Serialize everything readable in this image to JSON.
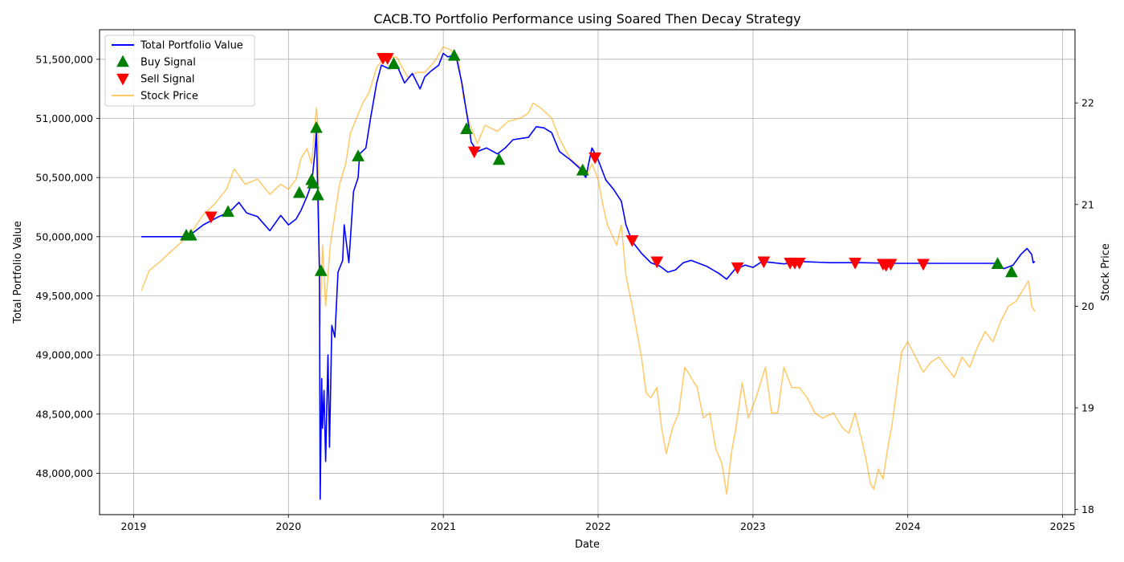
{
  "chart_data": {
    "type": "line",
    "title": "CACB.TO Portfolio Performance using Soared Then Decay Strategy",
    "xlabel": "Date",
    "ylabel": "Total Portfolio Value",
    "ylabel_right": "Stock Price",
    "xlim": [
      2018.78,
      2025.08
    ],
    "ylim": [
      47650000,
      51750000
    ],
    "ylim_right": [
      17.95,
      22.72
    ],
    "x_ticks": [
      2019,
      2020,
      2021,
      2022,
      2023,
      2024,
      2025
    ],
    "x_tick_labels": [
      "2019",
      "2020",
      "2021",
      "2022",
      "2023",
      "2024",
      "2025"
    ],
    "y_ticks": [
      48000000,
      48500000,
      49000000,
      49500000,
      50000000,
      50500000,
      51000000,
      51500000
    ],
    "y_tick_labels": [
      "48,000,000",
      "48,500,000",
      "49,000,000",
      "49,500,000",
      "50,000,000",
      "50,500,000",
      "51,000,000",
      "51,500,000"
    ],
    "y_ticks_right": [
      18,
      19,
      20,
      21,
      22
    ],
    "y_tick_labels_right": [
      "18",
      "19",
      "20",
      "21",
      "22"
    ],
    "grid": true,
    "legend_position": "top-left",
    "legend": [
      {
        "label": "Total Portfolio Value",
        "kind": "line",
        "color": "#0000ff"
      },
      {
        "label": "Buy Signal",
        "kind": "triangle-up",
        "color": "#008000"
      },
      {
        "label": "Sell Signal",
        "kind": "triangle-down",
        "color": "#ff0000"
      },
      {
        "label": "Stock Price",
        "kind": "line",
        "color": "#ffa500"
      }
    ],
    "series": [
      {
        "name": "Total Portfolio Value",
        "axis": "left",
        "color": "#0000ff",
        "points": [
          [
            2019.05,
            50000000
          ],
          [
            2019.33,
            50000000
          ],
          [
            2019.37,
            50020000
          ],
          [
            2019.45,
            50100000
          ],
          [
            2019.55,
            50170000
          ],
          [
            2019.62,
            50210000
          ],
          [
            2019.68,
            50290000
          ],
          [
            2019.73,
            50200000
          ],
          [
            2019.8,
            50170000
          ],
          [
            2019.88,
            50050000
          ],
          [
            2019.95,
            50180000
          ],
          [
            2020.0,
            50100000
          ],
          [
            2020.05,
            50150000
          ],
          [
            2020.08,
            50220000
          ],
          [
            2020.12,
            50340000
          ],
          [
            2020.15,
            50450000
          ],
          [
            2020.17,
            50700000
          ],
          [
            2020.18,
            50900000
          ],
          [
            2020.19,
            50350000
          ],
          [
            2020.2,
            49700000
          ],
          [
            2020.205,
            47780000
          ],
          [
            2020.215,
            48800000
          ],
          [
            2020.22,
            48380000
          ],
          [
            2020.23,
            48700000
          ],
          [
            2020.24,
            48100000
          ],
          [
            2020.255,
            49000000
          ],
          [
            2020.265,
            48220000
          ],
          [
            2020.28,
            49250000
          ],
          [
            2020.3,
            49150000
          ],
          [
            2020.32,
            49700000
          ],
          [
            2020.35,
            49800000
          ],
          [
            2020.36,
            50100000
          ],
          [
            2020.39,
            49780000
          ],
          [
            2020.42,
            50380000
          ],
          [
            2020.45,
            50500000
          ],
          [
            2020.46,
            50700000
          ],
          [
            2020.5,
            50750000
          ],
          [
            2020.53,
            51000000
          ],
          [
            2020.57,
            51300000
          ],
          [
            2020.6,
            51450000
          ],
          [
            2020.65,
            51420000
          ],
          [
            2020.7,
            51450000
          ],
          [
            2020.75,
            51300000
          ],
          [
            2020.8,
            51380000
          ],
          [
            2020.85,
            51250000
          ],
          [
            2020.88,
            51350000
          ],
          [
            2020.92,
            51400000
          ],
          [
            2020.97,
            51450000
          ],
          [
            2021.0,
            51550000
          ],
          [
            2021.03,
            51520000
          ],
          [
            2021.08,
            51540000
          ],
          [
            2021.12,
            51300000
          ],
          [
            2021.15,
            51050000
          ],
          [
            2021.17,
            50900000
          ],
          [
            2021.18,
            50800000
          ],
          [
            2021.22,
            50720000
          ],
          [
            2021.28,
            50750000
          ],
          [
            2021.35,
            50700000
          ],
          [
            2021.4,
            50750000
          ],
          [
            2021.45,
            50820000
          ],
          [
            2021.55,
            50840000
          ],
          [
            2021.6,
            50930000
          ],
          [
            2021.65,
            50920000
          ],
          [
            2021.7,
            50880000
          ],
          [
            2021.75,
            50720000
          ],
          [
            2021.82,
            50650000
          ],
          [
            2021.88,
            50580000
          ],
          [
            2021.92,
            50500000
          ],
          [
            2021.96,
            50750000
          ],
          [
            2022.0,
            50650000
          ],
          [
            2022.05,
            50480000
          ],
          [
            2022.1,
            50400000
          ],
          [
            2022.15,
            50300000
          ],
          [
            2022.18,
            50100000
          ],
          [
            2022.22,
            49960000
          ],
          [
            2022.28,
            49860000
          ],
          [
            2022.34,
            49780000
          ],
          [
            2022.4,
            49750000
          ],
          [
            2022.45,
            49700000
          ],
          [
            2022.5,
            49720000
          ],
          [
            2022.55,
            49780000
          ],
          [
            2022.6,
            49800000
          ],
          [
            2022.7,
            49750000
          ],
          [
            2022.78,
            49690000
          ],
          [
            2022.83,
            49640000
          ],
          [
            2022.88,
            49720000
          ],
          [
            2022.95,
            49760000
          ],
          [
            2023.0,
            49740000
          ],
          [
            2023.06,
            49790000
          ],
          [
            2023.2,
            49770000
          ],
          [
            2023.3,
            49790000
          ],
          [
            2023.5,
            49780000
          ],
          [
            2023.7,
            49780000
          ],
          [
            2023.9,
            49775000
          ],
          [
            2024.2,
            49775000
          ],
          [
            2024.58,
            49775000
          ],
          [
            2024.62,
            49730000
          ],
          [
            2024.68,
            49760000
          ],
          [
            2024.73,
            49850000
          ],
          [
            2024.77,
            49900000
          ],
          [
            2024.8,
            49850000
          ],
          [
            2024.81,
            49780000
          ],
          [
            2024.82,
            49790000
          ]
        ]
      },
      {
        "name": "Stock Price",
        "axis": "right",
        "color": "#ffa500",
        "points": [
          [
            2019.05,
            20.15
          ],
          [
            2019.1,
            20.35
          ],
          [
            2019.18,
            20.45
          ],
          [
            2019.25,
            20.55
          ],
          [
            2019.3,
            20.62
          ],
          [
            2019.37,
            20.72
          ],
          [
            2019.45,
            20.9
          ],
          [
            2019.52,
            21.0
          ],
          [
            2019.6,
            21.15
          ],
          [
            2019.65,
            21.35
          ],
          [
            2019.72,
            21.2
          ],
          [
            2019.8,
            21.25
          ],
          [
            2019.88,
            21.1
          ],
          [
            2019.95,
            21.2
          ],
          [
            2020.0,
            21.15
          ],
          [
            2020.05,
            21.25
          ],
          [
            2020.08,
            21.45
          ],
          [
            2020.12,
            21.55
          ],
          [
            2020.15,
            21.4
          ],
          [
            2020.18,
            21.95
          ],
          [
            2020.19,
            21.8
          ],
          [
            2020.2,
            20.4
          ],
          [
            2020.205,
            19.8
          ],
          [
            2020.22,
            20.6
          ],
          [
            2020.24,
            20.0
          ],
          [
            2020.27,
            20.6
          ],
          [
            2020.3,
            20.9
          ],
          [
            2020.33,
            21.2
          ],
          [
            2020.37,
            21.4
          ],
          [
            2020.4,
            21.7
          ],
          [
            2020.44,
            21.85
          ],
          [
            2020.48,
            22.0
          ],
          [
            2020.52,
            22.1
          ],
          [
            2020.57,
            22.35
          ],
          [
            2020.62,
            22.45
          ],
          [
            2020.7,
            22.45
          ],
          [
            2020.77,
            22.25
          ],
          [
            2020.83,
            22.3
          ],
          [
            2020.88,
            22.3
          ],
          [
            2020.94,
            22.4
          ],
          [
            2021.0,
            22.55
          ],
          [
            2021.05,
            22.52
          ],
          [
            2021.1,
            22.4
          ],
          [
            2021.13,
            22.05
          ],
          [
            2021.17,
            21.8
          ],
          [
            2021.22,
            21.6
          ],
          [
            2021.27,
            21.78
          ],
          [
            2021.35,
            21.72
          ],
          [
            2021.42,
            21.82
          ],
          [
            2021.5,
            21.85
          ],
          [
            2021.55,
            21.9
          ],
          [
            2021.58,
            22.0
          ],
          [
            2021.63,
            21.95
          ],
          [
            2021.7,
            21.85
          ],
          [
            2021.75,
            21.65
          ],
          [
            2021.82,
            21.45
          ],
          [
            2021.9,
            21.35
          ],
          [
            2021.93,
            21.3
          ],
          [
            2021.96,
            21.4
          ],
          [
            2022.0,
            21.25
          ],
          [
            2022.03,
            21.0
          ],
          [
            2022.06,
            20.8
          ],
          [
            2022.12,
            20.6
          ],
          [
            2022.15,
            20.8
          ],
          [
            2022.18,
            20.3
          ],
          [
            2022.22,
            20.0
          ],
          [
            2022.25,
            19.75
          ],
          [
            2022.28,
            19.5
          ],
          [
            2022.31,
            19.15
          ],
          [
            2022.34,
            19.1
          ],
          [
            2022.38,
            19.2
          ],
          [
            2022.41,
            18.8
          ],
          [
            2022.44,
            18.55
          ],
          [
            2022.48,
            18.8
          ],
          [
            2022.52,
            18.95
          ],
          [
            2022.56,
            19.4
          ],
          [
            2022.6,
            19.3
          ],
          [
            2022.64,
            19.2
          ],
          [
            2022.68,
            18.9
          ],
          [
            2022.72,
            18.95
          ],
          [
            2022.76,
            18.6
          ],
          [
            2022.8,
            18.45
          ],
          [
            2022.83,
            18.15
          ],
          [
            2022.86,
            18.55
          ],
          [
            2022.89,
            18.8
          ],
          [
            2022.93,
            19.25
          ],
          [
            2022.97,
            18.9
          ],
          [
            2023.02,
            19.1
          ],
          [
            2023.08,
            19.4
          ],
          [
            2023.12,
            18.95
          ],
          [
            2023.16,
            18.95
          ],
          [
            2023.2,
            19.4
          ],
          [
            2023.25,
            19.2
          ],
          [
            2023.3,
            19.2
          ],
          [
            2023.35,
            19.1
          ],
          [
            2023.4,
            18.95
          ],
          [
            2023.45,
            18.9
          ],
          [
            2023.52,
            18.95
          ],
          [
            2023.58,
            18.8
          ],
          [
            2023.62,
            18.75
          ],
          [
            2023.66,
            18.95
          ],
          [
            2023.7,
            18.7
          ],
          [
            2023.73,
            18.5
          ],
          [
            2023.76,
            18.25
          ],
          [
            2023.78,
            18.2
          ],
          [
            2023.81,
            18.4
          ],
          [
            2023.84,
            18.3
          ],
          [
            2023.87,
            18.6
          ],
          [
            2023.9,
            18.85
          ],
          [
            2023.93,
            19.2
          ],
          [
            2023.96,
            19.55
          ],
          [
            2024.0,
            19.65
          ],
          [
            2024.05,
            19.5
          ],
          [
            2024.1,
            19.35
          ],
          [
            2024.15,
            19.45
          ],
          [
            2024.2,
            19.5
          ],
          [
            2024.25,
            19.4
          ],
          [
            2024.3,
            19.3
          ],
          [
            2024.35,
            19.5
          ],
          [
            2024.4,
            19.4
          ],
          [
            2024.45,
            19.6
          ],
          [
            2024.5,
            19.75
          ],
          [
            2024.55,
            19.65
          ],
          [
            2024.6,
            19.85
          ],
          [
            2024.65,
            20.0
          ],
          [
            2024.7,
            20.05
          ],
          [
            2024.74,
            20.15
          ],
          [
            2024.78,
            20.25
          ],
          [
            2024.8,
            20.0
          ],
          [
            2024.82,
            19.95
          ]
        ]
      }
    ],
    "buy_signals": [
      [
        2019.34,
        50010000
      ],
      [
        2019.37,
        50010000
      ],
      [
        2019.61,
        50210000
      ],
      [
        2020.07,
        50370000
      ],
      [
        2020.15,
        50480000
      ],
      [
        2020.16,
        50450000
      ],
      [
        2020.18,
        50920000
      ],
      [
        2020.19,
        50350000
      ],
      [
        2020.21,
        49710000
      ],
      [
        2020.45,
        50680000
      ],
      [
        2020.68,
        51460000
      ],
      [
        2021.07,
        51530000
      ],
      [
        2021.15,
        50910000
      ],
      [
        2021.36,
        50650000
      ],
      [
        2021.9,
        50560000
      ],
      [
        2024.58,
        49770000
      ],
      [
        2024.67,
        49700000
      ]
    ],
    "sell_signals": [
      [
        2019.5,
        50170000
      ],
      [
        2020.61,
        51510000
      ],
      [
        2020.64,
        51510000
      ],
      [
        2021.2,
        50720000
      ],
      [
        2021.98,
        50670000
      ],
      [
        2022.22,
        49970000
      ],
      [
        2022.38,
        49790000
      ],
      [
        2022.9,
        49740000
      ],
      [
        2023.07,
        49790000
      ],
      [
        2023.24,
        49780000
      ],
      [
        2023.27,
        49780000
      ],
      [
        2023.3,
        49780000
      ],
      [
        2023.66,
        49780000
      ],
      [
        2023.84,
        49770000
      ],
      [
        2023.86,
        49760000
      ],
      [
        2023.89,
        49770000
      ],
      [
        2024.1,
        49770000
      ]
    ]
  }
}
